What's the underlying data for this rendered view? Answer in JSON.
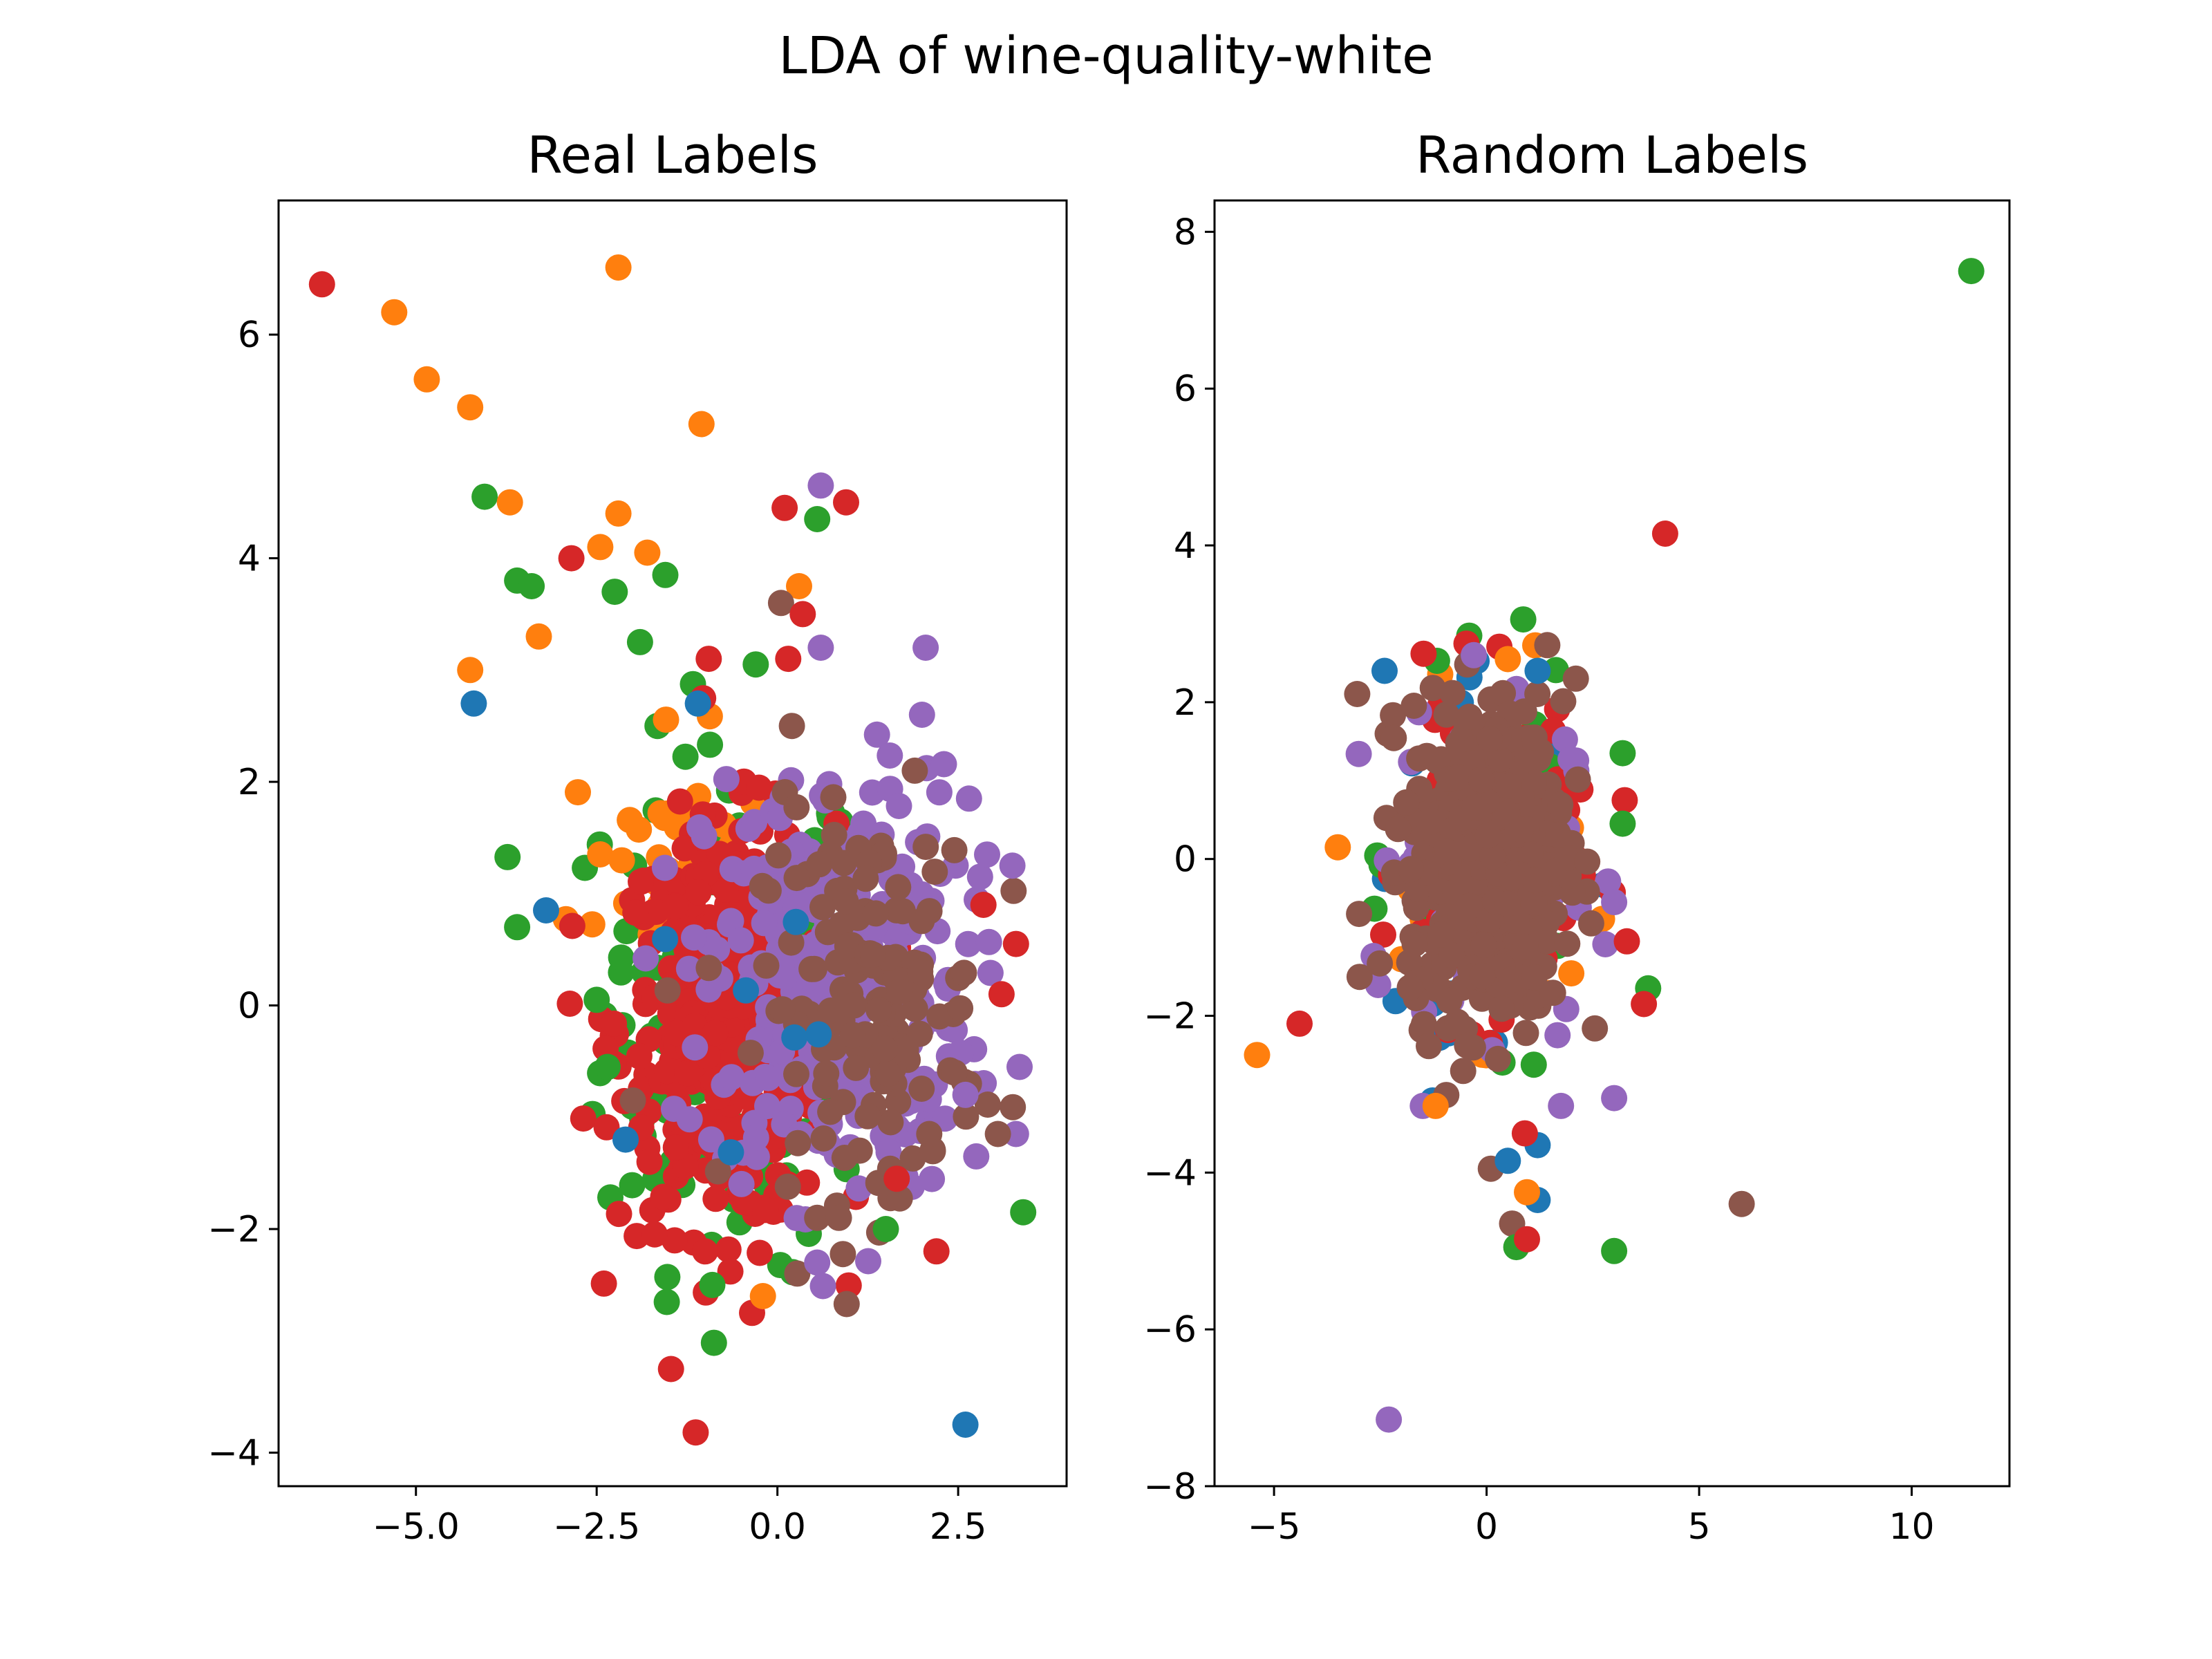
{
  "figure": {
    "title": "LDA of wine-quality-white"
  },
  "colors": [
    "#1f77b4",
    "#ff7f0e",
    "#2ca02c",
    "#d62728",
    "#9467bd",
    "#8c564b"
  ],
  "chart_data": [
    {
      "type": "scatter",
      "title": "Real Labels",
      "xlabel": "",
      "ylabel": "",
      "xlim": [
        -6.9,
        4.0
      ],
      "ylim": [
        -4.3,
        7.2
      ],
      "xticks": [
        -5.0,
        -2.5,
        0.0,
        2.5
      ],
      "xtick_labels": [
        "−5.0",
        "−2.5",
        "0.0",
        "2.5"
      ],
      "yticks": [
        -4,
        -2,
        0,
        2,
        4,
        6
      ],
      "ytick_labels": [
        "−4",
        "−2",
        "0",
        "2",
        "4",
        "6"
      ],
      "grid": false,
      "clusters": [
        {
          "color": 2,
          "cx": -0.6,
          "cy": 0.0,
          "sx": 0.9,
          "sy": 1.15,
          "n": 190
        },
        {
          "color": 1,
          "cx": -1.5,
          "cy": 1.2,
          "sx": 0.7,
          "sy": 0.6,
          "n": 40
        },
        {
          "color": 3,
          "cx": -0.7,
          "cy": -0.2,
          "sx": 0.75,
          "sy": 0.9,
          "n": 380
        },
        {
          "color": 4,
          "cx": 0.8,
          "cy": 0.2,
          "sx": 0.9,
          "sy": 0.95,
          "n": 330
        },
        {
          "color": 5,
          "cx": 1.3,
          "cy": 0.0,
          "sx": 0.75,
          "sy": 0.85,
          "n": 150
        },
        {
          "color": 0,
          "cx": -0.5,
          "cy": 0.0,
          "sx": 0.6,
          "sy": 0.6,
          "n": 6
        }
      ],
      "points": [
        {
          "x": -6.3,
          "y": 6.45,
          "s": 3
        },
        {
          "x": -2.2,
          "y": 6.6,
          "s": 1
        },
        {
          "x": -5.3,
          "y": 6.2,
          "s": 1
        },
        {
          "x": -4.85,
          "y": 5.6,
          "s": 1
        },
        {
          "x": -4.25,
          "y": 5.35,
          "s": 1
        },
        {
          "x": -1.05,
          "y": 5.2,
          "s": 1
        },
        {
          "x": -4.05,
          "y": 4.55,
          "s": 2
        },
        {
          "x": -3.7,
          "y": 4.5,
          "s": 1
        },
        {
          "x": -2.2,
          "y": 4.4,
          "s": 1
        },
        {
          "x": 0.1,
          "y": 4.45,
          "s": 3
        },
        {
          "x": 0.55,
          "y": 4.35,
          "s": 2
        },
        {
          "x": 0.95,
          "y": 4.5,
          "s": 3
        },
        {
          "x": 0.6,
          "y": 4.65,
          "s": 4
        },
        {
          "x": -3.6,
          "y": 3.8,
          "s": 2
        },
        {
          "x": -3.4,
          "y": 3.75,
          "s": 2
        },
        {
          "x": -2.85,
          "y": 4.0,
          "s": 3
        },
        {
          "x": -2.45,
          "y": 4.1,
          "s": 1
        },
        {
          "x": -1.8,
          "y": 4.05,
          "s": 1
        },
        {
          "x": -1.55,
          "y": 3.85,
          "s": 2
        },
        {
          "x": -2.25,
          "y": 3.7,
          "s": 2
        },
        {
          "x": 0.3,
          "y": 3.75,
          "s": 1
        },
        {
          "x": 0.05,
          "y": 3.6,
          "s": 5
        },
        {
          "x": 0.35,
          "y": 3.5,
          "s": 3
        },
        {
          "x": -4.25,
          "y": 3.0,
          "s": 1
        },
        {
          "x": -4.2,
          "y": 2.7,
          "s": 0
        },
        {
          "x": -3.3,
          "y": 3.3,
          "s": 1
        },
        {
          "x": -1.9,
          "y": 3.25,
          "s": 2
        },
        {
          "x": -0.95,
          "y": 3.1,
          "s": 3
        },
        {
          "x": -0.3,
          "y": 3.05,
          "s": 2
        },
        {
          "x": 0.15,
          "y": 3.1,
          "s": 3
        },
        {
          "x": 0.6,
          "y": 3.2,
          "s": 4
        },
        {
          "x": 2.05,
          "y": 3.2,
          "s": 4
        },
        {
          "x": 2.6,
          "y": -3.75,
          "s": 0
        },
        {
          "x": 3.4,
          "y": -1.85,
          "s": 2
        },
        {
          "x": 3.3,
          "y": -1.15,
          "s": 4
        },
        {
          "x": 3.05,
          "y": -1.15,
          "s": 5
        },
        {
          "x": 2.2,
          "y": -2.2,
          "s": 3
        },
        {
          "x": 1.5,
          "y": -2.0,
          "s": 2
        },
        {
          "x": 3.35,
          "y": -0.55,
          "s": 4
        },
        {
          "x": 3.3,
          "y": 0.55,
          "s": 3
        },
        {
          "x": 3.25,
          "y": 1.25,
          "s": 4
        },
        {
          "x": -0.35,
          "y": -2.75,
          "s": 3
        },
        {
          "x": -0.2,
          "y": -2.6,
          "s": 1
        },
        {
          "x": -0.9,
          "y": -2.5,
          "s": 2
        },
        {
          "x": -1.0,
          "y": -2.2,
          "s": 3
        },
        {
          "x": 0.55,
          "y": -2.3,
          "s": 4
        },
        {
          "x": -3.6,
          "y": 0.7,
          "s": 2
        },
        {
          "x": -3.2,
          "y": 0.85,
          "s": 0
        },
        {
          "x": -2.5,
          "y": 0.05,
          "s": 2
        },
        {
          "x": -2.35,
          "y": -0.55,
          "s": 2
        },
        {
          "x": -2.0,
          "y": -0.85,
          "s": 5
        },
        {
          "x": -2.1,
          "y": -1.2,
          "s": 0
        },
        {
          "x": -1.1,
          "y": 2.7,
          "s": 0
        },
        {
          "x": 2.65,
          "y": 1.85,
          "s": 4
        },
        {
          "x": 2.9,
          "y": 1.35,
          "s": 4
        },
        {
          "x": 2.85,
          "y": 0.9,
          "s": 3
        },
        {
          "x": 3.1,
          "y": 0.1,
          "s": 3
        },
        {
          "x": 2.75,
          "y": -1.35,
          "s": 4
        },
        {
          "x": 0.55,
          "y": -1.9,
          "s": 5
        },
        {
          "x": 0.85,
          "y": -1.9,
          "s": 5
        },
        {
          "x": 1.65,
          "y": -1.55,
          "s": 3
        },
        {
          "x": 2.1,
          "y": -1.15,
          "s": 5
        },
        {
          "x": 2.45,
          "y": -0.6,
          "s": 5
        },
        {
          "x": 2.6,
          "y": -0.8,
          "s": 4
        },
        {
          "x": 1.9,
          "y": 2.1,
          "s": 5
        },
        {
          "x": 2.0,
          "y": 2.6,
          "s": 4
        },
        {
          "x": 0.2,
          "y": 2.5,
          "s": 5
        }
      ]
    },
    {
      "type": "scatter",
      "title": "Random Labels",
      "xlabel": "",
      "ylabel": "",
      "xlim": [
        -6.4,
        12.3
      ],
      "ylim": [
        -8.0,
        8.4
      ],
      "xticks": [
        -5,
        0,
        5,
        10
      ],
      "xtick_labels": [
        "−5",
        "0",
        "5",
        "10"
      ],
      "yticks": [
        -8,
        -6,
        -4,
        -2,
        0,
        2,
        4,
        6,
        8
      ],
      "ytick_labels": [
        "−8",
        "−6",
        "−4",
        "−2",
        "0",
        "2",
        "4",
        "6",
        "8"
      ],
      "grid": false,
      "clusters": [
        {
          "color": 0,
          "cx": 0.0,
          "cy": 0.0,
          "sx": 1.0,
          "sy": 1.05,
          "n": 70
        },
        {
          "color": 1,
          "cx": 0.0,
          "cy": 0.0,
          "sx": 1.0,
          "sy": 1.05,
          "n": 70
        },
        {
          "color": 2,
          "cx": 0.0,
          "cy": 0.0,
          "sx": 1.0,
          "sy": 1.05,
          "n": 70
        },
        {
          "color": 3,
          "cx": 0.0,
          "cy": 0.0,
          "sx": 1.0,
          "sy": 1.05,
          "n": 110
        },
        {
          "color": 4,
          "cx": 0.0,
          "cy": 0.0,
          "sx": 1.0,
          "sy": 1.05,
          "n": 110
        },
        {
          "color": 5,
          "cx": 0.0,
          "cy": 0.0,
          "sx": 0.9,
          "sy": 1.0,
          "n": 520
        }
      ],
      "points": [
        {
          "x": 11.4,
          "y": 7.5,
          "s": 2
        },
        {
          "x": 4.2,
          "y": 4.15,
          "s": 3
        },
        {
          "x": -2.3,
          "y": -7.15,
          "s": 4
        },
        {
          "x": 6.0,
          "y": -4.4,
          "s": 5
        },
        {
          "x": 3.0,
          "y": -5.0,
          "s": 2
        },
        {
          "x": 0.6,
          "y": -4.65,
          "s": 5
        },
        {
          "x": 0.7,
          "y": -4.95,
          "s": 2
        },
        {
          "x": 0.95,
          "y": -4.85,
          "s": 3
        },
        {
          "x": 1.2,
          "y": -4.35,
          "s": 0
        },
        {
          "x": 0.95,
          "y": -4.25,
          "s": 1
        },
        {
          "x": 0.1,
          "y": -3.95,
          "s": 5
        },
        {
          "x": 0.5,
          "y": -3.85,
          "s": 0
        },
        {
          "x": 1.2,
          "y": -3.65,
          "s": 0
        },
        {
          "x": 0.9,
          "y": -3.5,
          "s": 3
        },
        {
          "x": -5.4,
          "y": -2.5,
          "s": 1
        },
        {
          "x": -4.4,
          "y": -2.1,
          "s": 3
        },
        {
          "x": -3.5,
          "y": 0.15,
          "s": 1
        },
        {
          "x": -3.0,
          "y": -0.7,
          "s": 5
        },
        {
          "x": -2.4,
          "y": 2.4,
          "s": 0
        },
        {
          "x": 2.1,
          "y": 2.3,
          "s": 5
        },
        {
          "x": 1.2,
          "y": 2.4,
          "s": 0
        },
        {
          "x": 3.2,
          "y": 1.35,
          "s": 2
        },
        {
          "x": 3.25,
          "y": 0.75,
          "s": 3
        },
        {
          "x": 3.2,
          "y": 0.45,
          "s": 2
        },
        {
          "x": 3.0,
          "y": -0.55,
          "s": 4
        },
        {
          "x": 3.3,
          "y": -1.05,
          "s": 3
        },
        {
          "x": 3.8,
          "y": -1.65,
          "s": 2
        },
        {
          "x": 3.7,
          "y": -1.85,
          "s": 3
        },
        {
          "x": 3.0,
          "y": -3.05,
          "s": 4
        },
        {
          "x": 1.75,
          "y": -3.15,
          "s": 4
        },
        {
          "x": -1.5,
          "y": -3.15,
          "s": 4
        },
        {
          "x": -1.2,
          "y": -3.15,
          "s": 1
        },
        {
          "x": -0.3,
          "y": 2.6,
          "s": 4
        },
        {
          "x": 0.5,
          "y": 2.55,
          "s": 1
        }
      ]
    }
  ]
}
